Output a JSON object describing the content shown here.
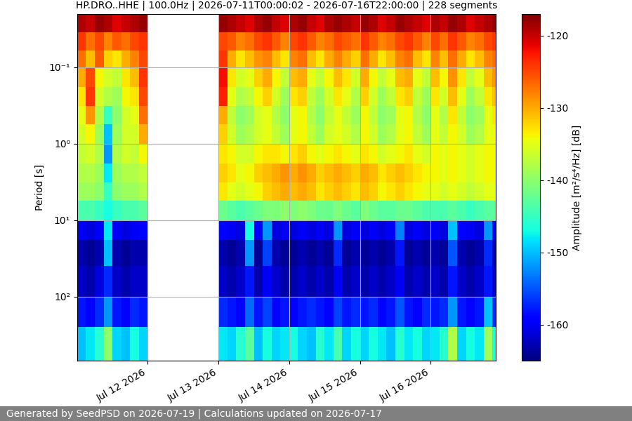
{
  "chart_data": {
    "type": "heatmap",
    "title": "HP.DRO..HHE | 100.0Hz | 2026-07-11T00:00:02 - 2026-07-16T22:00:00 | 228 segments",
    "ylabel": "Period [s]",
    "footer": "Generated by SeedPSD on 2026-07-19 | Calculations updated on 2026-07-17",
    "color": "jet",
    "log": "y",
    "grid": true,
    "xlim": [
      0,
      5.9167
    ],
    "ylim": [
      690,
      0.02
    ],
    "xticks": [
      {
        "value": 1,
        "label": "Jul 12 2026"
      },
      {
        "value": 2,
        "label": "Jul 13 2026"
      },
      {
        "value": 3,
        "label": "Jul 14 2026"
      },
      {
        "value": 4,
        "label": "Jul 15 2026"
      },
      {
        "value": 5,
        "label": "Jul 16 2026"
      }
    ],
    "yticks": [
      {
        "value": 0.1,
        "label": "10⁻¹"
      },
      {
        "value": 1,
        "label": "10⁰"
      },
      {
        "value": 10,
        "label": "10¹"
      },
      {
        "value": 100,
        "label": "10²"
      }
    ],
    "colorbar": {
      "label": "Amplitude [m²/s⁴/Hz] [dB]",
      "lim": [
        -165,
        -117
      ],
      "ticks": [
        -160,
        -150,
        -140,
        -130,
        -120
      ]
    },
    "x_edges": [
      0,
      0.125,
      0.25,
      0.375,
      0.5,
      0.625,
      0.75,
      0.875,
      1.0,
      1.125,
      1.25,
      1.375,
      1.5,
      1.625,
      1.75,
      1.875,
      2.0,
      2.125,
      2.25,
      2.375,
      2.5,
      2.625,
      2.75,
      2.875,
      3.0,
      3.125,
      3.25,
      3.375,
      3.5,
      3.625,
      3.75,
      3.875,
      4.0,
      4.125,
      4.25,
      4.375,
      4.5,
      4.625,
      4.75,
      4.875,
      5.0,
      5.125,
      5.25,
      5.375,
      5.5,
      5.625,
      5.75,
      5.875,
      6.0
    ],
    "y_edges": [
      0.02,
      0.035,
      0.06,
      0.1,
      0.18,
      0.32,
      0.56,
      1.0,
      1.8,
      3.2,
      5.6,
      10,
      18,
      40,
      100,
      250,
      690
    ],
    "cells": [
      [
        -119,
        -120,
        -118,
        -119,
        -121,
        -120,
        -119,
        -118,
        null,
        null,
        null,
        null,
        null,
        null,
        null,
        null,
        -118,
        -119,
        -120,
        -121,
        -119,
        -118,
        -120,
        -121,
        -119,
        -118,
        -120,
        -121,
        -119,
        -118,
        -119,
        -120,
        -118,
        -119,
        -121,
        -120,
        -118,
        -119,
        -120,
        -121,
        -119,
        -120,
        -118,
        -119,
        -121,
        -120,
        -119,
        -118
      ],
      [
        -124,
        -127,
        -125,
        -128,
        -126,
        -127,
        -125,
        -124,
        null,
        null,
        null,
        null,
        null,
        null,
        null,
        null,
        -125,
        -126,
        -128,
        -127,
        -125,
        -124,
        -126,
        -128,
        -125,
        -124,
        -126,
        -128,
        -127,
        -125,
        -126,
        -127,
        -124,
        -126,
        -128,
        -127,
        -125,
        -124,
        -126,
        -128,
        -125,
        -127,
        -124,
        -126,
        -128,
        -127,
        -125,
        -124
      ],
      [
        -127,
        -131,
        -126,
        -132,
        -133,
        -130,
        -128,
        -125,
        null,
        null,
        null,
        null,
        null,
        null,
        null,
        null,
        -124,
        -130,
        -133,
        -131,
        -129,
        -128,
        -131,
        -133,
        -128,
        -127,
        -131,
        -133,
        -130,
        -128,
        -130,
        -132,
        -127,
        -130,
        -133,
        -131,
        -128,
        -127,
        -131,
        -133,
        -128,
        -131,
        -127,
        -130,
        -133,
        -131,
        -128,
        -127
      ],
      [
        -130,
        -125,
        -134,
        -136,
        -137,
        -133,
        -131,
        -124,
        null,
        null,
        null,
        null,
        null,
        null,
        null,
        null,
        -122,
        -133,
        -136,
        -135,
        -132,
        -130,
        -134,
        -137,
        -131,
        -130,
        -135,
        -137,
        -134,
        -131,
        -133,
        -136,
        -130,
        -134,
        -137,
        -135,
        -131,
        -130,
        -135,
        -137,
        -131,
        -134,
        -129,
        -133,
        -137,
        -135,
        -131,
        -129
      ],
      [
        -133,
        -124,
        -136,
        -138,
        -139,
        -134,
        -133,
        -125,
        null,
        null,
        null,
        null,
        null,
        null,
        null,
        null,
        -123,
        -135,
        -138,
        -137,
        -134,
        -132,
        -136,
        -139,
        -133,
        -132,
        -137,
        -139,
        -136,
        -133,
        -135,
        -138,
        -132,
        -136,
        -139,
        -137,
        -133,
        -132,
        -137,
        -139,
        -133,
        -136,
        -131,
        -135,
        -139,
        -137,
        -133,
        -131
      ],
      [
        -135,
        -129,
        -138,
        -145,
        -140,
        -136,
        -135,
        -127,
        null,
        null,
        null,
        null,
        null,
        null,
        null,
        null,
        -130,
        -137,
        -140,
        -139,
        -136,
        -135,
        -138,
        -140,
        -135,
        -134,
        -138,
        -140,
        -137,
        -135,
        -137,
        -139,
        -134,
        -137,
        -140,
        -139,
        -135,
        -134,
        -138,
        -140,
        -135,
        -138,
        -133,
        -137,
        -140,
        -139,
        -135,
        -133
      ],
      [
        -136,
        -134,
        -139,
        -150,
        -139,
        -136,
        -136,
        -130,
        null,
        null,
        null,
        null,
        null,
        null,
        null,
        null,
        -132,
        -136,
        -139,
        -138,
        -136,
        -135,
        -137,
        -139,
        -135,
        -134,
        -137,
        -139,
        -136,
        -135,
        -136,
        -138,
        -134,
        -136,
        -139,
        -138,
        -135,
        -134,
        -137,
        -139,
        -135,
        -137,
        -134,
        -136,
        -139,
        -138,
        -135,
        -134
      ],
      [
        -137,
        -136,
        -138,
        -152,
        -138,
        -136,
        -137,
        -134,
        null,
        null,
        null,
        null,
        null,
        null,
        null,
        null,
        -133,
        -134,
        -136,
        -136,
        -134,
        -133,
        -133,
        -134,
        -133,
        -132,
        -134,
        -135,
        -134,
        -133,
        -134,
        -135,
        -133,
        -134,
        -136,
        -135,
        -134,
        -133,
        -135,
        -136,
        -134,
        -135,
        -134,
        -135,
        -136,
        -135,
        -134,
        -134
      ],
      [
        -138,
        -138,
        -139,
        -148,
        -139,
        -138,
        -138,
        -137,
        null,
        null,
        null,
        null,
        null,
        null,
        null,
        null,
        -132,
        -133,
        -135,
        -134,
        -132,
        -131,
        -130,
        -129,
        -130,
        -129,
        -130,
        -132,
        -131,
        -130,
        -131,
        -132,
        -130,
        -131,
        -133,
        -132,
        -131,
        -132,
        -133,
        -134,
        -134,
        -135,
        -134,
        -135,
        -136,
        -135,
        -134,
        -134
      ],
      [
        -139,
        -139,
        -140,
        -145,
        -140,
        -139,
        -139,
        -138,
        null,
        null,
        null,
        null,
        null,
        null,
        null,
        null,
        -133,
        -135,
        -136,
        -135,
        -134,
        -132,
        -131,
        -130,
        -131,
        -130,
        -131,
        -133,
        -132,
        -131,
        -132,
        -133,
        -131,
        -132,
        -134,
        -133,
        -132,
        -133,
        -134,
        -135,
        -135,
        -136,
        -135,
        -136,
        -137,
        -136,
        -135,
        -135
      ],
      [
        -144,
        -144,
        -145,
        -147,
        -145,
        -144,
        -144,
        -143,
        null,
        null,
        null,
        null,
        null,
        null,
        null,
        null,
        -142,
        -143,
        -144,
        -143,
        -142,
        -141,
        -141,
        -140,
        -141,
        -140,
        -141,
        -142,
        -142,
        -141,
        -142,
        -143,
        -141,
        -142,
        -143,
        -143,
        -142,
        -142,
        -143,
        -144,
        -144,
        -144,
        -143,
        -144,
        -145,
        -144,
        -143,
        -143
      ],
      [
        -160,
        -161,
        -160,
        -148,
        -160,
        -161,
        -160,
        -159,
        null,
        null,
        null,
        null,
        null,
        null,
        null,
        null,
        -159,
        -160,
        -161,
        -147,
        -160,
        -152,
        -161,
        -160,
        -161,
        -160,
        -161,
        -160,
        -161,
        -152,
        -161,
        -160,
        -161,
        -160,
        -161,
        -160,
        -153,
        -161,
        -160,
        -161,
        -160,
        -161,
        -150,
        -159,
        -160,
        -161,
        -152,
        -160
      ],
      [
        -163,
        -164,
        -163,
        -150,
        -163,
        -164,
        -163,
        -163,
        null,
        null,
        null,
        null,
        null,
        null,
        null,
        null,
        -163,
        -164,
        -163,
        -152,
        -164,
        -156,
        -163,
        -164,
        -164,
        -163,
        -164,
        -163,
        -164,
        -157,
        -164,
        -163,
        -164,
        -163,
        -164,
        -163,
        -158,
        -164,
        -163,
        -164,
        -163,
        -164,
        -155,
        -163,
        -164,
        -163,
        -157,
        -163
      ],
      [
        -162,
        -163,
        -161,
        -157,
        -162,
        -163,
        -162,
        -162,
        null,
        null,
        null,
        null,
        null,
        null,
        null,
        null,
        -162,
        -163,
        -162,
        -158,
        -163,
        -160,
        -162,
        -163,
        -163,
        -162,
        -163,
        -162,
        -163,
        -160,
        -163,
        -162,
        -163,
        -162,
        -163,
        -162,
        -160,
        -163,
        -162,
        -163,
        -162,
        -163,
        -158,
        -162,
        -163,
        -162,
        -158,
        -162
      ],
      [
        -158,
        -159,
        -157,
        -152,
        -158,
        -159,
        -157,
        -158,
        null,
        null,
        null,
        null,
        null,
        null,
        null,
        null,
        -157,
        -158,
        -159,
        -154,
        -158,
        -156,
        -159,
        -158,
        -159,
        -158,
        -157,
        -158,
        -159,
        -156,
        -158,
        -157,
        -158,
        -157,
        -159,
        -158,
        -155,
        -158,
        -159,
        -157,
        -158,
        -157,
        -152,
        -158,
        -159,
        -158,
        -150,
        -157
      ],
      [
        -150,
        -148,
        -146,
        -140,
        -149,
        -150,
        -147,
        -149,
        null,
        null,
        null,
        null,
        null,
        null,
        null,
        null,
        -148,
        -149,
        -146,
        -143,
        -150,
        -147,
        -149,
        -148,
        -147,
        -149,
        -150,
        -146,
        -148,
        -144,
        -149,
        -147,
        -149,
        -147,
        -148,
        -150,
        -146,
        -148,
        -147,
        -149,
        -148,
        -146,
        -138,
        -149,
        -147,
        -148,
        -139,
        -147
      ]
    ]
  }
}
